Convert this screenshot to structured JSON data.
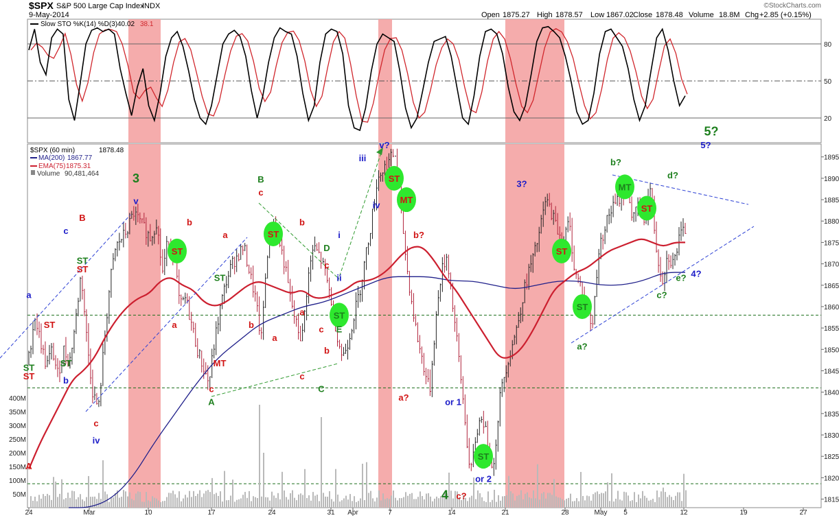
{
  "header": {
    "symbol": "$SPX",
    "name": "S&P 500 Large Cap Index",
    "exchange": "INDX",
    "date": "9-May-2014",
    "ohlc": {
      "open_label": "Open",
      "open": "1875.27",
      "high_label": "High",
      "high": "1878.57",
      "low_label": "Low",
      "low": "1867.02",
      "close_label": "Close",
      "close": "1878.48",
      "volume_label": "Volume",
      "volume": "18.8M",
      "chg_label": "Chg",
      "chg": "+2.85 (+0.15%)"
    },
    "brand": "©StockCharts.com"
  },
  "colors": {
    "price_bar": "#b0223a",
    "ema": "#cc1f2f",
    "ma": "#1f1f8a",
    "band": "#f4a3a3",
    "volume": "#b9b9b9",
    "sto_k": "#000000",
    "sto_d": "#d0262c",
    "st_marker": "#2ee82e",
    "label_red": "#d11414",
    "label_green": "#1d7f1d",
    "label_blue": "#1c1cc8",
    "trend_blue": "#2b3fd4",
    "trend_green": "#2f9a2f",
    "support_green": "#1b6e1b"
  },
  "chart_data": [
    {
      "type": "line",
      "panel": "stochastic",
      "title": "Slow STO %K(14) %D(3)",
      "series": [
        {
          "name": "%K(14)",
          "last": 40.02,
          "values": [
            75,
            92,
            65,
            55,
            85,
            92,
            88,
            35,
            18,
            48,
            80,
            91,
            93,
            90,
            92,
            88,
            60,
            40,
            22,
            45,
            60,
            30,
            18,
            40,
            70,
            85,
            90,
            78,
            58,
            35,
            20,
            15,
            30,
            55,
            80,
            88,
            91,
            86,
            70,
            42,
            20,
            38,
            65,
            85,
            93,
            90,
            88,
            70,
            40,
            18,
            30,
            65,
            88,
            92,
            90,
            72,
            30,
            12,
            10,
            28,
            58,
            80,
            88,
            85,
            82,
            58,
            28,
            12,
            20,
            42,
            65,
            82,
            84,
            86,
            70,
            45,
            20,
            15,
            38,
            70,
            90,
            92,
            88,
            72,
            45,
            25,
            18,
            30,
            55,
            82,
            93,
            94,
            90,
            85,
            70,
            50,
            25,
            15,
            18,
            40,
            72,
            90,
            92,
            85,
            78,
            60,
            35,
            18,
            30,
            58,
            85,
            92,
            75,
            50,
            30,
            38
          ]
        },
        {
          "name": "%D(3)",
          "last": 38.1
        }
      ],
      "ylim": [
        0,
        100
      ],
      "yticks": [
        20,
        50,
        80
      ]
    },
    {
      "type": "candlestick",
      "panel": "price",
      "title": "$SPX (60 min)",
      "last": "1878.48",
      "overlays": [
        {
          "name": "MA(200)",
          "value": "1867.77"
        },
        {
          "name": "EMA(75)",
          "value": "1875.31"
        }
      ],
      "volume": {
        "name": "Volume",
        "value": "90,481,464",
        "ylim": [
          0,
          400
        ],
        "unit": "M",
        "yticks": [
          "50M",
          "100M",
          "150M",
          "200M",
          "250M",
          "300M",
          "350M",
          "400M"
        ]
      },
      "ylim": [
        1813,
        1898
      ],
      "yticks": [
        1815,
        1820,
        1825,
        1830,
        1835,
        1840,
        1845,
        1850,
        1855,
        1860,
        1865,
        1870,
        1875,
        1880,
        1885,
        1890,
        1895
      ],
      "support_levels": [
        1858,
        1841,
        1818.6
      ],
      "close_path": [
        1848,
        1858,
        1852,
        1846,
        1850,
        1844,
        1850,
        1847,
        1856,
        1868,
        1852,
        1840,
        1836,
        1852,
        1866,
        1874,
        1876,
        1878,
        1882,
        1880,
        1878,
        1876,
        1880,
        1868,
        1876,
        1872,
        1860,
        1862,
        1856,
        1850,
        1846,
        1842,
        1852,
        1860,
        1866,
        1870,
        1872,
        1874,
        1868,
        1862,
        1852,
        1872,
        1880,
        1876,
        1870,
        1862,
        1856,
        1852,
        1866,
        1874,
        1872,
        1868,
        1862,
        1854,
        1848,
        1852,
        1858,
        1864,
        1872,
        1880,
        1890,
        1892,
        1894,
        1896,
        1884,
        1870,
        1860,
        1852,
        1846,
        1840,
        1856,
        1868,
        1872,
        1860,
        1848,
        1835,
        1820,
        1830,
        1835,
        1828,
        1822,
        1838,
        1845,
        1850,
        1855,
        1862,
        1868,
        1872,
        1878,
        1885,
        1882,
        1878,
        1875,
        1880,
        1868,
        1865,
        1860,
        1855,
        1872,
        1878,
        1882,
        1884,
        1886,
        1888,
        1880,
        1884,
        1880,
        1888,
        1874,
        1866,
        1872,
        1870,
        1876,
        1878
      ],
      "ema_path": [
        1822,
        1828,
        1833,
        1838,
        1843,
        1845,
        1848,
        1853,
        1857,
        1860,
        1862,
        1863,
        1866,
        1867,
        1865,
        1864,
        1861,
        1860,
        1861,
        1863,
        1865,
        1866,
        1865,
        1864,
        1863,
        1864,
        1862,
        1862,
        1863,
        1864,
        1866,
        1866,
        1867,
        1869,
        1872,
        1874,
        1874,
        1871,
        1867,
        1864,
        1860,
        1856,
        1852,
        1848,
        1848,
        1850,
        1854,
        1859,
        1864,
        1866,
        1868,
        1869,
        1871,
        1873,
        1874,
        1875,
        1876,
        1875,
        1874,
        1875,
        1875
      ],
      "ma_path": [
        1813,
        1813,
        1815,
        1820,
        1828,
        1835,
        1842,
        1848,
        1852,
        1856,
        1858,
        1860,
        1861,
        1863,
        1865,
        1867,
        1867,
        1867,
        1866,
        1866,
        1865,
        1864,
        1865,
        1866,
        1866,
        1865,
        1865,
        1866,
        1868,
        1868
      ],
      "bands": [
        [
          1,
          1
        ],
        [
          6,
          6
        ],
        [
          9,
          10
        ]
      ],
      "st_markers": [
        {
          "label": "ST",
          "text_color": "red",
          "x_date": "Mar 12",
          "y": 1873
        },
        {
          "label": "ST",
          "text_color": "red",
          "x_date": "Mar 24",
          "y": 1877
        },
        {
          "label": "ST",
          "text_color": "green",
          "x_date": "Apr 1",
          "y": 1858
        },
        {
          "label": "ST",
          "text_color": "red",
          "x_date": "Apr 5",
          "y": 1890
        },
        {
          "label": "MT",
          "text_color": "red",
          "x_date": "Apr 7",
          "y": 1885
        },
        {
          "label": "ST",
          "text_color": "green",
          "x_date": "Apr 16",
          "y": 1825
        },
        {
          "label": "ST",
          "text_color": "red",
          "x_date": "Apr 28",
          "y": 1873
        },
        {
          "label": "ST",
          "text_color": "green",
          "x_date": "Apr 30",
          "y": 1860
        },
        {
          "label": "MT",
          "text_color": "green",
          "x_date": "May 5",
          "y": 1888
        },
        {
          "label": "ST",
          "text_color": "red",
          "x_date": "May 7",
          "y": 1883
        }
      ],
      "annotations": [
        {
          "text": "ST",
          "color": "red",
          "y": 1843,
          "x_date": "Feb 24"
        },
        {
          "text": "A",
          "color": "red",
          "y": 1822,
          "x_date": "Feb 24"
        },
        {
          "text": "a",
          "color": "blue",
          "y": 1862,
          "x_date": "Feb 24"
        },
        {
          "text": "ST",
          "color": "green",
          "y": 1845,
          "x_date": "Feb 24"
        },
        {
          "text": "ST",
          "color": "red",
          "y": 1855,
          "x_date": "Feb 26"
        },
        {
          "text": "ST",
          "color": "green",
          "y": 1846,
          "x_date": "Feb 27"
        },
        {
          "text": "b",
          "color": "blue",
          "y": 1842,
          "x_date": "Feb 27"
        },
        {
          "text": "c",
          "color": "blue",
          "y": 1877,
          "x_date": "Feb 27"
        },
        {
          "text": "B",
          "color": "red",
          "y": 1880,
          "x_date": "Feb 28"
        },
        {
          "text": "ST",
          "color": "red",
          "y": 1868,
          "x_date": "Feb 28"
        },
        {
          "text": "ST",
          "color": "green",
          "y": 1870,
          "x_date": "Feb 28"
        },
        {
          "text": "c",
          "color": "red",
          "y": 1832,
          "x_date": "Mar 3"
        },
        {
          "text": "iv",
          "color": "blue",
          "y": 1828,
          "x_date": "Mar 3"
        },
        {
          "text": "3",
          "color": "green",
          "y": 1889,
          "x_date": "Mar 7"
        },
        {
          "text": "v",
          "color": "blue",
          "y": 1884,
          "x_date": "Mar 7"
        },
        {
          "text": "b",
          "color": "red",
          "y": 1879,
          "x_date": "Mar 14"
        },
        {
          "text": "a",
          "color": "red",
          "y": 1855,
          "x_date": "Mar 13"
        },
        {
          "text": "MT",
          "color": "red",
          "y": 1846,
          "x_date": "Mar 18"
        },
        {
          "text": "a",
          "color": "red",
          "y": 1876,
          "x_date": "Mar 19"
        },
        {
          "text": "ST",
          "color": "green",
          "y": 1866,
          "x_date": "Mar 18"
        },
        {
          "text": "c",
          "color": "red",
          "y": 1840,
          "x_date": "Mar 17"
        },
        {
          "text": "A",
          "color": "green",
          "y": 1837,
          "x_date": "Mar 17"
        },
        {
          "text": "b",
          "color": "red",
          "y": 1855,
          "x_date": "Mar 20"
        },
        {
          "text": "B",
          "color": "green",
          "y": 1889,
          "x_date": "Mar 21"
        },
        {
          "text": "c",
          "color": "red",
          "y": 1886,
          "x_date": "Mar 21"
        },
        {
          "text": "a",
          "color": "red",
          "y": 1852,
          "x_date": "Mar 25"
        },
        {
          "text": "b",
          "color": "red",
          "y": 1879,
          "x_date": "Mar 27"
        },
        {
          "text": "a",
          "color": "red",
          "y": 1858,
          "x_date": "Mar 27"
        },
        {
          "text": "c",
          "color": "red",
          "y": 1843,
          "x_date": "Mar 27"
        },
        {
          "text": "C",
          "color": "green",
          "y": 1840,
          "x_date": "Mar 28"
        },
        {
          "text": "D",
          "color": "green",
          "y": 1873,
          "x_date": "Mar 31"
        },
        {
          "text": "c",
          "color": "red",
          "y": 1869,
          "x_date": "Mar 31"
        },
        {
          "text": "c",
          "color": "red",
          "y": 1854,
          "x_date": "Mar 28"
        },
        {
          "text": "b",
          "color": "red",
          "y": 1849,
          "x_date": "Mar 31"
        },
        {
          "text": "E",
          "color": "green",
          "y": 1854,
          "x_date": "Apr 1"
        },
        {
          "text": "i",
          "color": "blue",
          "y": 1876,
          "x_date": "Apr 1"
        },
        {
          "text": "ii",
          "color": "blue",
          "y": 1866,
          "x_date": "Apr 1"
        },
        {
          "text": "iii",
          "color": "blue",
          "y": 1894,
          "x_date": "Apr 2"
        },
        {
          "text": "iv",
          "color": "blue",
          "y": 1883,
          "x_date": "Apr 3"
        },
        {
          "text": "v?",
          "color": "blue",
          "y": 1897,
          "x_date": "Apr 4"
        },
        {
          "text": "b?",
          "color": "red",
          "y": 1876,
          "x_date": "Apr 10"
        },
        {
          "text": "a?",
          "color": "red",
          "y": 1838,
          "x_date": "Apr 8"
        },
        {
          "text": "or 1",
          "color": "blue",
          "y": 1837,
          "x_date": "Apr 15"
        },
        {
          "text": "4",
          "color": "green",
          "y": 1815,
          "x_date": "Apr 13"
        },
        {
          "text": "c?",
          "color": "red",
          "y": 1815,
          "x_date": "Apr 14"
        },
        {
          "text": "or 2",
          "color": "blue",
          "y": 1819,
          "x_date": "Apr 16"
        },
        {
          "text": "3?",
          "color": "blue",
          "y": 1888,
          "x_date": "Apr 23"
        },
        {
          "text": "a?",
          "color": "green",
          "y": 1850,
          "x_date": "Apr 30"
        },
        {
          "text": "b?",
          "color": "green",
          "y": 1893,
          "x_date": "May 3"
        },
        {
          "text": "d?",
          "color": "green",
          "y": 1890,
          "x_date": "May 9"
        },
        {
          "text": "c?",
          "color": "green",
          "y": 1862,
          "x_date": "May 8"
        },
        {
          "text": "e?",
          "color": "green",
          "y": 1866,
          "x_date": "May 10"
        },
        {
          "text": "4?",
          "color": "blue",
          "y": 1867,
          "x_date": "May 11"
        },
        {
          "text": "5?",
          "color": "green",
          "y": 1900,
          "x_date": "May 14"
        },
        {
          "text": "5?",
          "color": "blue",
          "y": 1897,
          "x_date": "May 13"
        }
      ],
      "x_tick_labels": [
        "24",
        "Mar",
        "10",
        "17",
        "24",
        "31",
        "Apr",
        "7",
        "14",
        "21",
        "28",
        "May",
        "5",
        "12",
        "19",
        "27"
      ]
    }
  ]
}
